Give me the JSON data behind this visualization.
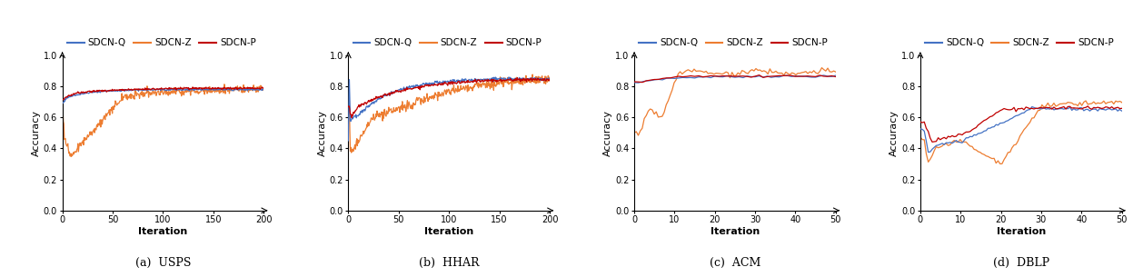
{
  "colors": {
    "Q": "#4472c4",
    "Z": "#ed7d31",
    "P": "#c00000"
  },
  "subplots": [
    {
      "title": "(a)  USPS",
      "xlabel": "Iteration",
      "ylabel": "Accuracy",
      "xlim": [
        0,
        200
      ],
      "ylim": [
        0,
        1
      ],
      "xticks": [
        0,
        50,
        100,
        150,
        200
      ],
      "yticks": [
        0,
        0.2,
        0.4,
        0.6,
        0.8,
        1
      ]
    },
    {
      "title": "(b)  HHAR",
      "xlabel": "Iteration",
      "ylabel": "Accuracy",
      "xlim": [
        0,
        200
      ],
      "ylim": [
        0,
        1
      ],
      "xticks": [
        0,
        50,
        100,
        150,
        200
      ],
      "yticks": [
        0,
        0.2,
        0.4,
        0.6,
        0.8,
        1
      ]
    },
    {
      "title": "(c)  ACM",
      "xlabel": "Iteration",
      "ylabel": "Accuracy",
      "xlim": [
        0,
        50
      ],
      "ylim": [
        0,
        1
      ],
      "xticks": [
        0,
        10,
        20,
        30,
        40,
        50
      ],
      "yticks": [
        0,
        0.2,
        0.4,
        0.6,
        0.8,
        1
      ]
    },
    {
      "title": "(d)  DBLP",
      "xlabel": "Iteration",
      "ylabel": "Accuracy",
      "xlim": [
        0,
        50
      ],
      "ylim": [
        0,
        1
      ],
      "xticks": [
        0,
        10,
        20,
        30,
        40,
        50
      ],
      "yticks": [
        0,
        0.2,
        0.4,
        0.6,
        0.8,
        1
      ]
    }
  ],
  "legend_labels": [
    "SDCN-Q",
    "SDCN-Z",
    "SDCN-P"
  ],
  "background_color": "#ffffff"
}
